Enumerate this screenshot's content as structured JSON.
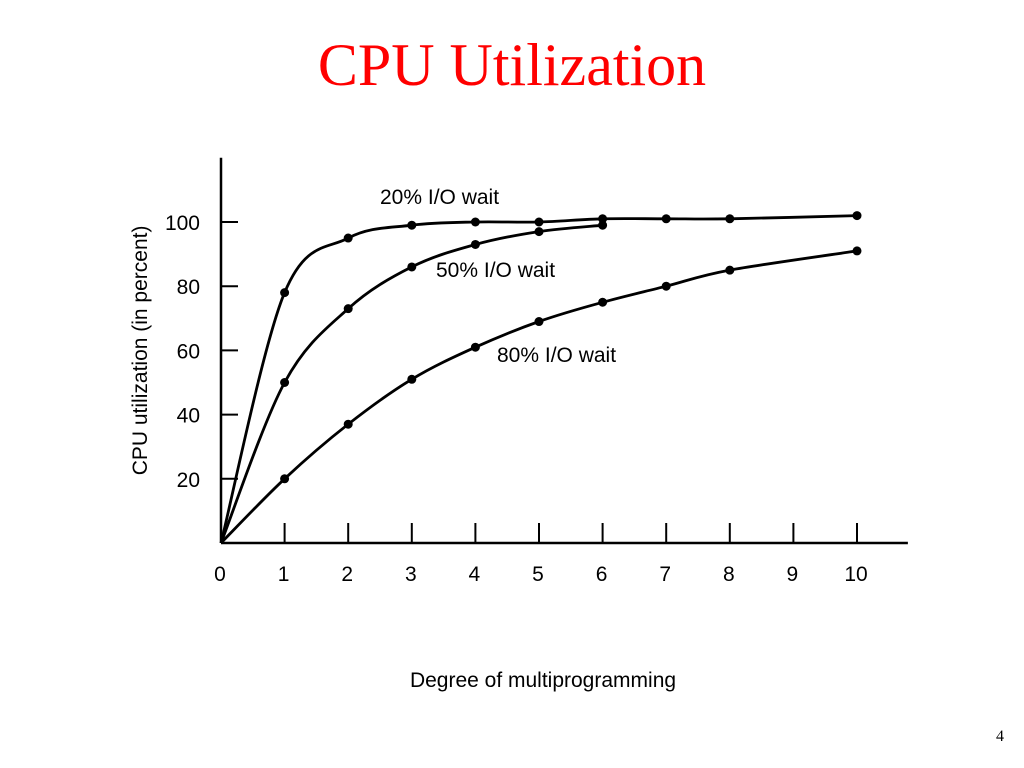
{
  "slide": {
    "title": "CPU Utilization",
    "page_number": "4"
  },
  "colors": {
    "title": "#ff0000",
    "ink": "#000000",
    "background": "#ffffff"
  },
  "chart_data": {
    "type": "line",
    "title": "",
    "xlabel": "Degree of multiprogramming",
    "ylabel": "CPU utilization (in percent)",
    "xlim": [
      0,
      10.8
    ],
    "ylim": [
      0,
      120
    ],
    "xticks": [
      0,
      1,
      2,
      3,
      4,
      5,
      6,
      7,
      8,
      9,
      10
    ],
    "yticks": [
      20,
      40,
      60,
      80,
      100
    ],
    "grid": false,
    "legend": "inline labels",
    "series": [
      {
        "name": "20% I/O wait",
        "x": [
          0,
          1,
          2,
          3,
          4,
          5,
          6,
          7,
          8,
          10
        ],
        "y": [
          0,
          78,
          95,
          99,
          100,
          100,
          101,
          101,
          101,
          102
        ]
      },
      {
        "name": "50% I/O wait",
        "x": [
          0,
          1,
          2,
          3,
          4,
          5,
          6
        ],
        "y": [
          0,
          50,
          73,
          86,
          93,
          97,
          99
        ]
      },
      {
        "name": "80% I/O wait",
        "x": [
          0,
          1,
          2,
          3,
          4,
          5,
          6,
          7,
          8,
          10
        ],
        "y": [
          0,
          20,
          37,
          51,
          61,
          69,
          75,
          80,
          85,
          91
        ]
      }
    ]
  }
}
